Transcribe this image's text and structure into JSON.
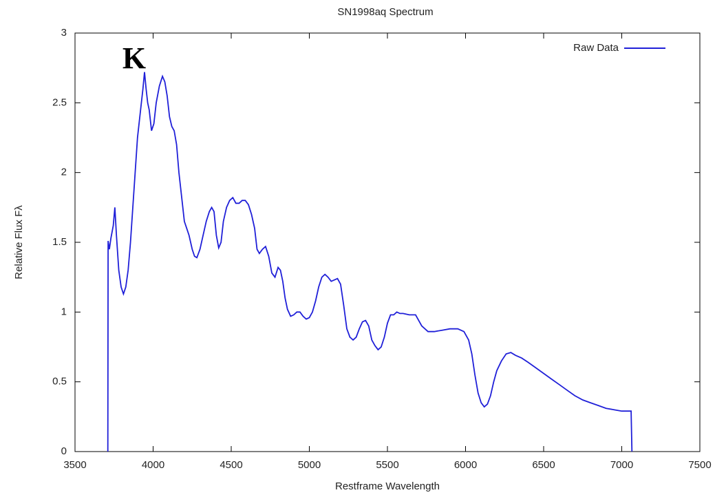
{
  "chart_data": {
    "type": "line",
    "title": "SN1998aq Spectrum",
    "xlabel": "Restframe Wavelength",
    "ylabel": "Relative Flux Fλ",
    "annotation": "K",
    "x": [
      3710,
      3712,
      3720,
      3730,
      3745,
      3755,
      3765,
      3780,
      3795,
      3810,
      3825,
      3840,
      3855,
      3870,
      3885,
      3900,
      3920,
      3935,
      3945,
      3955,
      3965,
      3975,
      3990,
      4005,
      4020,
      4040,
      4060,
      4075,
      4090,
      4105,
      4120,
      4135,
      4150,
      4165,
      4180,
      4200,
      4215,
      4230,
      4250,
      4265,
      4280,
      4300,
      4320,
      4340,
      4360,
      4375,
      4390,
      4405,
      4420,
      4435,
      4450,
      4470,
      4490,
      4510,
      4530,
      4550,
      4570,
      4590,
      4610,
      4630,
      4650,
      4665,
      4680,
      4700,
      4720,
      4740,
      4760,
      4780,
      4800,
      4815,
      4830,
      4845,
      4860,
      4880,
      4900,
      4920,
      4940,
      4960,
      4980,
      5000,
      5020,
      5040,
      5060,
      5080,
      5100,
      5120,
      5140,
      5160,
      5180,
      5200,
      5220,
      5240,
      5260,
      5280,
      5300,
      5320,
      5340,
      5360,
      5380,
      5400,
      5420,
      5440,
      5460,
      5480,
      5500,
      5520,
      5540,
      5560,
      5580,
      5600,
      5640,
      5680,
      5720,
      5760,
      5800,
      5850,
      5900,
      5950,
      5990,
      6020,
      6040,
      6060,
      6080,
      6100,
      6120,
      6140,
      6160,
      6180,
      6200,
      6230,
      6260,
      6290,
      6320,
      6360,
      6400,
      6450,
      6500,
      6550,
      6600,
      6650,
      6700,
      6750,
      6800,
      6850,
      6900,
      6950,
      7000,
      7060,
      7065
    ],
    "series": [
      {
        "name": "Raw Data",
        "color": "#1f1fd8",
        "values": [
          0,
          1.51,
          1.45,
          1.53,
          1.62,
          1.75,
          1.55,
          1.3,
          1.18,
          1.13,
          1.18,
          1.3,
          1.5,
          1.75,
          2.0,
          2.25,
          2.45,
          2.6,
          2.72,
          2.6,
          2.5,
          2.45,
          2.3,
          2.35,
          2.5,
          2.62,
          2.69,
          2.65,
          2.55,
          2.4,
          2.33,
          2.3,
          2.2,
          2.0,
          1.85,
          1.65,
          1.6,
          1.55,
          1.45,
          1.4,
          1.39,
          1.45,
          1.55,
          1.65,
          1.72,
          1.75,
          1.72,
          1.55,
          1.46,
          1.5,
          1.65,
          1.75,
          1.8,
          1.82,
          1.78,
          1.78,
          1.8,
          1.8,
          1.77,
          1.7,
          1.6,
          1.45,
          1.42,
          1.45,
          1.47,
          1.4,
          1.28,
          1.25,
          1.32,
          1.3,
          1.22,
          1.1,
          1.02,
          0.97,
          0.98,
          1.0,
          1.0,
          0.97,
          0.95,
          0.96,
          1.0,
          1.08,
          1.18,
          1.25,
          1.27,
          1.25,
          1.22,
          1.23,
          1.24,
          1.2,
          1.05,
          0.88,
          0.82,
          0.8,
          0.82,
          0.88,
          0.93,
          0.94,
          0.9,
          0.8,
          0.76,
          0.73,
          0.75,
          0.82,
          0.92,
          0.98,
          0.98,
          1.0,
          0.99,
          0.99,
          0.98,
          0.98,
          0.9,
          0.86,
          0.86,
          0.87,
          0.88,
          0.88,
          0.86,
          0.8,
          0.7,
          0.55,
          0.42,
          0.35,
          0.32,
          0.34,
          0.4,
          0.5,
          0.58,
          0.65,
          0.7,
          0.71,
          0.69,
          0.67,
          0.64,
          0.6,
          0.56,
          0.52,
          0.48,
          0.44,
          0.4,
          0.37,
          0.35,
          0.33,
          0.31,
          0.3,
          0.29,
          0.29,
          0
        ]
      }
    ],
    "xlim": [
      3500,
      7500
    ],
    "xticks": [
      3500,
      4000,
      4500,
      5000,
      5500,
      6000,
      6500,
      7000,
      7500
    ],
    "ylim": [
      0,
      3
    ],
    "yticks": [
      0,
      0.5,
      1,
      1.5,
      2,
      2.5,
      3
    ],
    "legend": "upper right",
    "grid": false
  }
}
